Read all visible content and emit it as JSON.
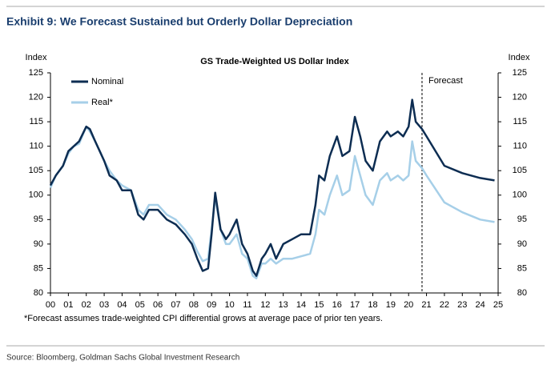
{
  "header": {
    "title": "Exhibit 9: We Forecast Sustained but Orderly Dollar Depreciation"
  },
  "chart_data": {
    "type": "line",
    "title": "GS Trade-Weighted US Dollar Index",
    "y_label": "Index",
    "y2_label": "Index",
    "x": [
      0,
      0.3,
      0.7,
      1.0,
      1.3,
      1.6,
      2.0,
      2.2,
      2.5,
      3.0,
      3.3,
      3.7,
      4.0,
      4.5,
      4.9,
      5.2,
      5.5,
      6.0,
      6.5,
      7.0,
      7.5,
      7.9,
      8.2,
      8.5,
      8.8,
      9.0,
      9.2,
      9.5,
      9.8,
      10.0,
      10.4,
      10.7,
      11.0,
      11.3,
      11.5,
      11.8,
      12.0,
      12.3,
      12.6,
      13.0,
      13.5,
      14.0,
      14.5,
      14.8,
      15.0,
      15.3,
      15.6,
      16.0,
      16.3,
      16.7,
      17.0,
      17.3,
      17.6,
      18.0,
      18.4,
      18.8,
      19.0,
      19.4,
      19.7,
      20.0,
      20.2,
      20.4,
      20.75,
      21,
      22,
      23,
      24,
      24.8
    ],
    "series": [
      {
        "name": "Nominal",
        "color": "#0d2d52",
        "values": [
          102,
          104,
          106,
          109,
          110,
          111,
          114,
          113.5,
          111,
          107,
          104,
          103,
          101,
          101,
          96,
          95,
          97,
          97,
          95,
          94,
          92,
          90,
          87,
          84.5,
          85,
          92,
          100.5,
          93,
          91,
          92,
          95,
          90,
          88,
          84.5,
          83.5,
          87,
          88,
          90,
          87,
          90,
          91,
          92,
          92,
          98,
          104,
          103,
          108,
          112,
          108,
          109,
          116,
          112,
          107,
          105,
          111,
          113,
          112,
          113,
          112,
          114,
          119.5,
          115,
          113.5,
          112,
          106,
          104.5,
          103.5,
          103
        ]
      },
      {
        "name": "Real*",
        "color": "#a6cfe8",
        "values": [
          101.5,
          104,
          106,
          108.5,
          110,
          110.5,
          114,
          113,
          111,
          107,
          105,
          103,
          102,
          101,
          97,
          96,
          98,
          98,
          96,
          95,
          93,
          91,
          88.5,
          86.5,
          87,
          93,
          99.5,
          93,
          90,
          90,
          92,
          88,
          87,
          83.5,
          83,
          86,
          86,
          87,
          86,
          87,
          87,
          87.5,
          88,
          92,
          97,
          96,
          100,
          104,
          100,
          101,
          108,
          104,
          100,
          98,
          103,
          104.5,
          103,
          104,
          103,
          104,
          111,
          107,
          105.5,
          104,
          98.5,
          96.5,
          95,
          94.5
        ]
      }
    ],
    "xlim": [
      0,
      25
    ],
    "xticks": [
      {
        "value": 0,
        "label": "00"
      },
      {
        "value": 1,
        "label": "01"
      },
      {
        "value": 2,
        "label": "02"
      },
      {
        "value": 3,
        "label": "03"
      },
      {
        "value": 4,
        "label": "04"
      },
      {
        "value": 5,
        "label": "05"
      },
      {
        "value": 6,
        "label": "06"
      },
      {
        "value": 7,
        "label": "07"
      },
      {
        "value": 8,
        "label": "08"
      },
      {
        "value": 9,
        "label": "09"
      },
      10,
      11,
      12,
      13,
      14,
      15,
      16,
      17,
      18,
      19,
      20,
      21,
      22,
      23,
      24,
      25
    ],
    "ylim": [
      80,
      125
    ],
    "yticks": [
      80,
      85,
      90,
      95,
      100,
      105,
      110,
      115,
      120,
      125
    ],
    "y2lim": [
      80,
      125
    ],
    "y2ticks": [
      80,
      85,
      90,
      95,
      100,
      105,
      110,
      115,
      120,
      125
    ],
    "annotation": {
      "text": "Forecast",
      "x": 20.75
    },
    "footnote": "*Forecast assumes trade-weighted CPI differential grows at average pace of prior ten years."
  },
  "footer": {
    "source": "Source: Bloomberg, Goldman Sachs Global Investment Research"
  }
}
